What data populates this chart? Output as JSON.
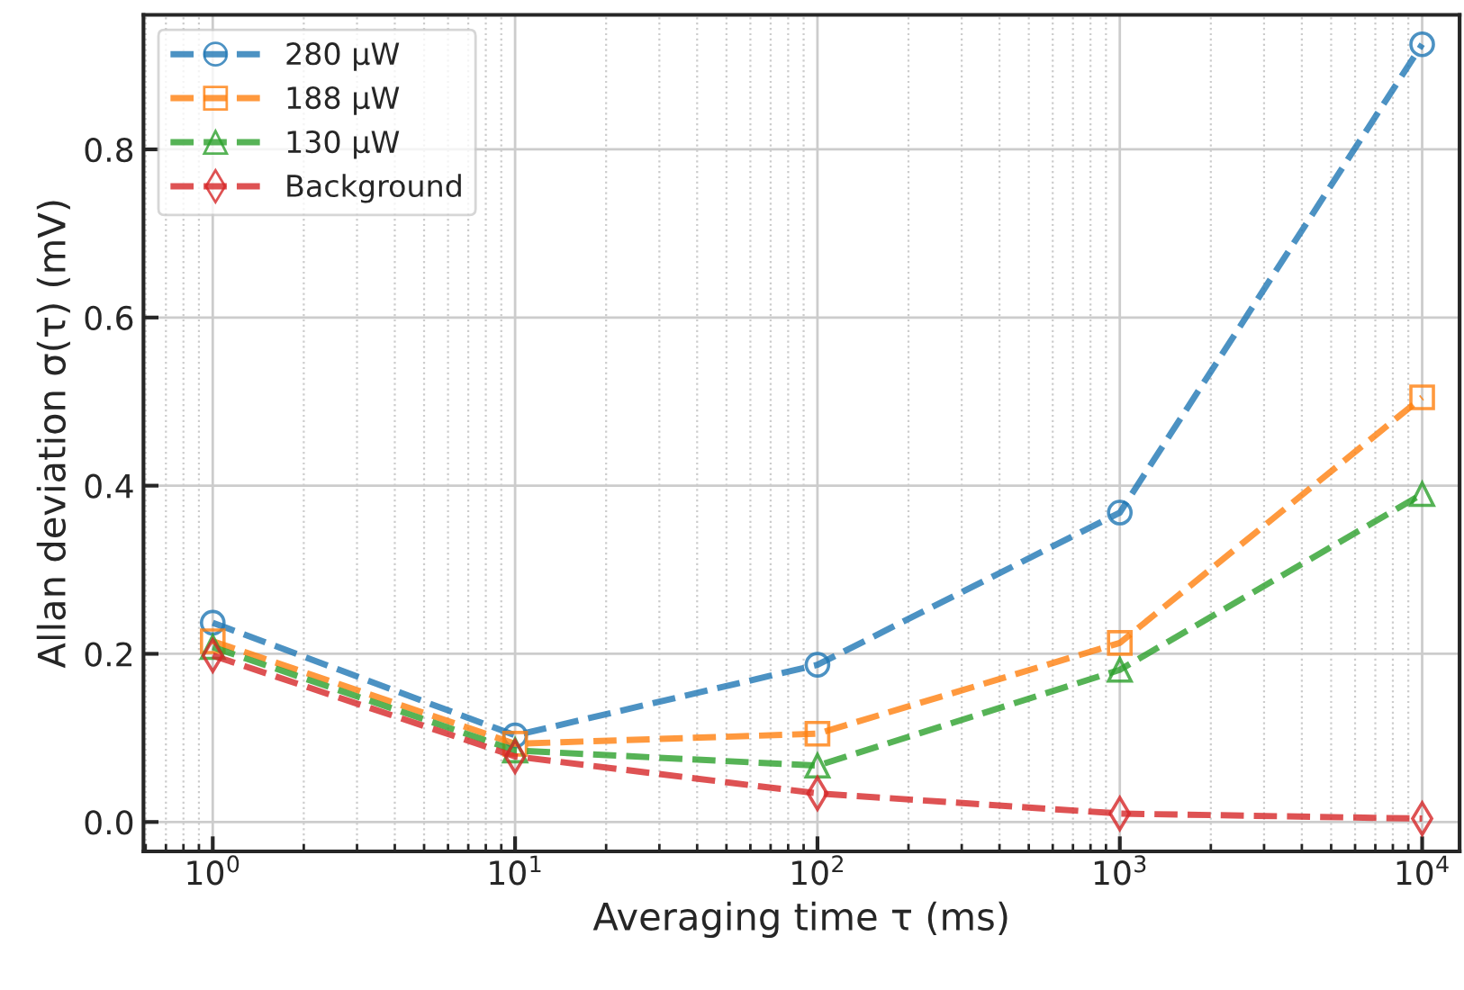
{
  "chart_data": {
    "type": "line",
    "xlabel": "Averaging time τ (ms)",
    "ylabel": "Allan deviation σ(τ) (mV)",
    "x": [
      1,
      10,
      100,
      1000,
      10000
    ],
    "log": "x",
    "grid": true,
    "legend": "top left",
    "line_style": "dashed",
    "xlim": [
      0.59,
      13300
    ],
    "xticks": [
      {
        "value": 1,
        "label": "10$^{0}$"
      },
      {
        "value": 10,
        "label": "10$^{1}$"
      },
      {
        "value": 100,
        "label": "10$^{2}$"
      },
      {
        "value": 1000,
        "label": "10$^{3}$"
      },
      {
        "value": 10000,
        "label": "10$^{4}$"
      }
    ],
    "ylim": [
      -0.035,
      0.96
    ],
    "yticks": [
      {
        "value": 0,
        "label": "0.0"
      },
      0.2,
      0.4,
      0.6,
      0.8
    ],
    "series": [
      {
        "name": "280 μW",
        "color": "#1f77b4",
        "marker": "circle",
        "values": [
          0.237,
          0.103,
          0.187,
          0.368,
          0.925
        ]
      },
      {
        "name": "188 μW",
        "color": "#ff7f0e",
        "marker": "square",
        "values": [
          0.215,
          0.093,
          0.105,
          0.213,
          0.505
        ]
      },
      {
        "name": "130 μW",
        "color": "#2ca02c",
        "marker": "triangle",
        "values": [
          0.208,
          0.085,
          0.067,
          0.181,
          0.39
        ]
      },
      {
        "name": "Background",
        "color": "#d62728",
        "marker": "diamond",
        "values": [
          0.198,
          0.078,
          0.034,
          0.01,
          0.004
        ]
      }
    ]
  }
}
